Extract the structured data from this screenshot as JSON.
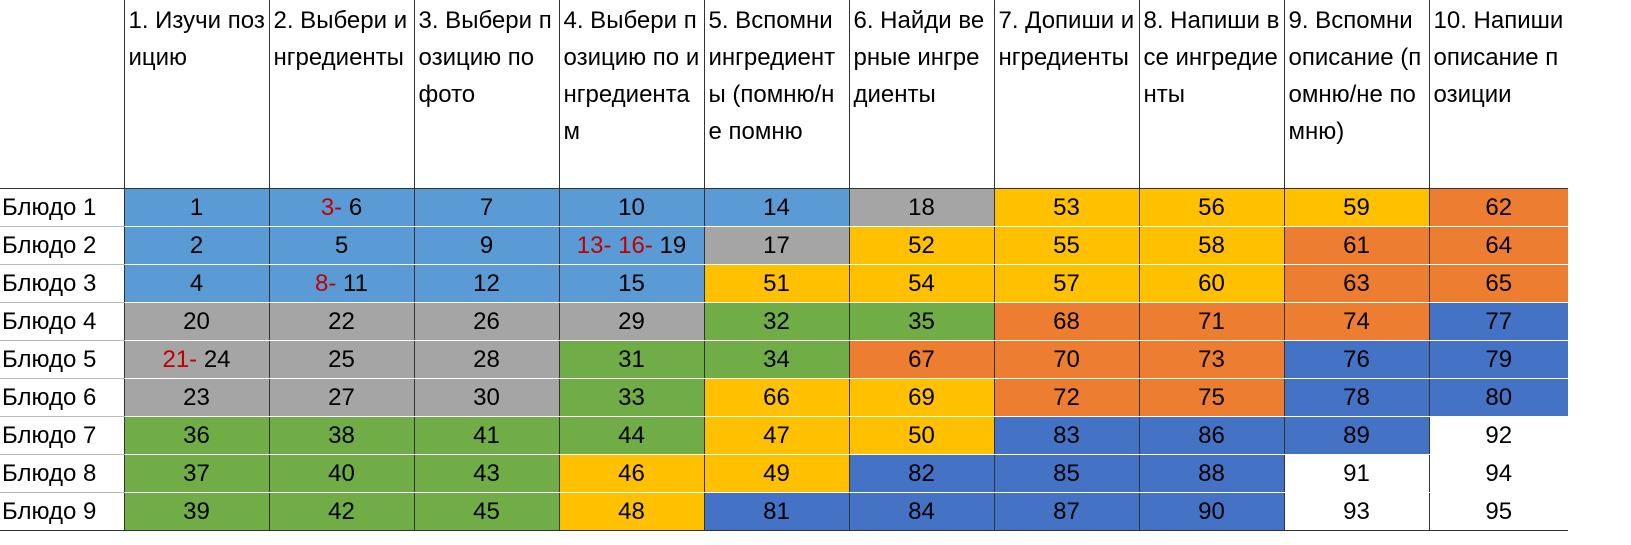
{
  "colors": {
    "lightblue": "#5b9bd5",
    "gray": "#a5a5a5",
    "yellow": "#ffc000",
    "orange": "#ed7d31",
    "green": "#70ad47",
    "blue": "#4472c4",
    "white": "#ffffff",
    "prefix_text": "#c00000"
  },
  "columns": [
    {
      "label": "1. Изучи позицию"
    },
    {
      "label": "2. Выбери ингредиенты"
    },
    {
      "label": "3. Выбери позицию по фото"
    },
    {
      "label": "4. Выбери позицию по ингредиентам"
    },
    {
      "label": "5. Вспомни ингредиенты (помню/не помню"
    },
    {
      "label": "6. Найди верные ингредиенты"
    },
    {
      "label": "7. Допиши ингредиенты"
    },
    {
      "label": "8. Напиши все ингредиенты"
    },
    {
      "label": "9. Вспомни описание (помню/не помню)"
    },
    {
      "label": "10. Напиши описание позиции"
    }
  ],
  "rows": [
    {
      "label": "Блюдо 1",
      "cells": [
        {
          "value": "1",
          "color": "lightblue"
        },
        {
          "prefix": "3-",
          "value": "6",
          "color": "lightblue"
        },
        {
          "value": "7",
          "color": "lightblue"
        },
        {
          "value": "10",
          "color": "lightblue"
        },
        {
          "value": "14",
          "color": "lightblue"
        },
        {
          "value": "18",
          "color": "gray"
        },
        {
          "value": "53",
          "color": "yellow"
        },
        {
          "value": "56",
          "color": "yellow"
        },
        {
          "value": "59",
          "color": "yellow"
        },
        {
          "value": "62",
          "color": "orange"
        }
      ]
    },
    {
      "label": "Блюдо 2",
      "cells": [
        {
          "value": "2",
          "color": "lightblue"
        },
        {
          "value": "5",
          "color": "lightblue"
        },
        {
          "value": "9",
          "color": "lightblue"
        },
        {
          "prefix": "13- 16-",
          "value": "19",
          "color": "lightblue"
        },
        {
          "value": "17",
          "color": "gray"
        },
        {
          "value": "52",
          "color": "yellow"
        },
        {
          "value": "55",
          "color": "yellow"
        },
        {
          "value": "58",
          "color": "yellow"
        },
        {
          "value": "61",
          "color": "orange"
        },
        {
          "value": "64",
          "color": "orange"
        }
      ]
    },
    {
      "label": "Блюдо 3",
      "cells": [
        {
          "value": "4",
          "color": "lightblue"
        },
        {
          "prefix": "8-",
          "value": "11",
          "color": "lightblue"
        },
        {
          "value": "12",
          "color": "lightblue"
        },
        {
          "value": "15",
          "color": "lightblue"
        },
        {
          "value": "51",
          "color": "yellow"
        },
        {
          "value": "54",
          "color": "yellow"
        },
        {
          "value": "57",
          "color": "yellow"
        },
        {
          "value": "60",
          "color": "yellow"
        },
        {
          "value": "63",
          "color": "orange"
        },
        {
          "value": "65",
          "color": "orange"
        }
      ]
    },
    {
      "label": "Блюдо 4",
      "cells": [
        {
          "value": "20",
          "color": "gray"
        },
        {
          "value": "22",
          "color": "gray"
        },
        {
          "value": "26",
          "color": "gray"
        },
        {
          "value": "29",
          "color": "gray"
        },
        {
          "value": "32",
          "color": "green"
        },
        {
          "value": "35",
          "color": "green"
        },
        {
          "value": "68",
          "color": "orange"
        },
        {
          "value": "71",
          "color": "orange"
        },
        {
          "value": "74",
          "color": "orange"
        },
        {
          "value": "77",
          "color": "blue"
        }
      ]
    },
    {
      "label": "Блюдо 5",
      "cells": [
        {
          "prefix": "21-",
          "value": "24",
          "color": "gray"
        },
        {
          "value": "25",
          "color": "gray"
        },
        {
          "value": "28",
          "color": "gray"
        },
        {
          "value": "31",
          "color": "green"
        },
        {
          "value": "34",
          "color": "green"
        },
        {
          "value": "67",
          "color": "orange"
        },
        {
          "value": "70",
          "color": "orange"
        },
        {
          "value": "73",
          "color": "orange"
        },
        {
          "value": "76",
          "color": "blue"
        },
        {
          "value": "79",
          "color": "blue"
        }
      ]
    },
    {
      "label": "Блюдо 6",
      "cells": [
        {
          "value": "23",
          "color": "gray"
        },
        {
          "value": "27",
          "color": "gray"
        },
        {
          "value": "30",
          "color": "gray"
        },
        {
          "value": "33",
          "color": "green"
        },
        {
          "value": "66",
          "color": "yellow"
        },
        {
          "value": "69",
          "color": "yellow"
        },
        {
          "value": "72",
          "color": "orange"
        },
        {
          "value": "75",
          "color": "orange"
        },
        {
          "value": "78",
          "color": "blue"
        },
        {
          "value": "80",
          "color": "blue"
        }
      ]
    },
    {
      "label": "Блюдо 7",
      "cells": [
        {
          "value": "36",
          "color": "green"
        },
        {
          "value": "38",
          "color": "green"
        },
        {
          "value": "41",
          "color": "green"
        },
        {
          "value": "44",
          "color": "green"
        },
        {
          "value": "47",
          "color": "yellow"
        },
        {
          "value": "50",
          "color": "yellow"
        },
        {
          "value": "83",
          "color": "blue"
        },
        {
          "value": "86",
          "color": "blue"
        },
        {
          "value": "89",
          "color": "blue"
        },
        {
          "value": "92",
          "color": "white"
        }
      ]
    },
    {
      "label": "Блюдо 8",
      "cells": [
        {
          "value": "37",
          "color": "green"
        },
        {
          "value": "40",
          "color": "green"
        },
        {
          "value": "43",
          "color": "green"
        },
        {
          "value": "46",
          "color": "yellow"
        },
        {
          "value": "49",
          "color": "yellow"
        },
        {
          "value": "82",
          "color": "blue"
        },
        {
          "value": "85",
          "color": "blue"
        },
        {
          "value": "88",
          "color": "blue"
        },
        {
          "value": "91",
          "color": "white"
        },
        {
          "value": "94",
          "color": "white"
        }
      ]
    },
    {
      "label": "Блюдо 9",
      "cells": [
        {
          "value": "39",
          "color": "green"
        },
        {
          "value": "42",
          "color": "green"
        },
        {
          "value": "45",
          "color": "green"
        },
        {
          "value": "48",
          "color": "yellow"
        },
        {
          "value": "81",
          "color": "blue"
        },
        {
          "value": "84",
          "color": "blue"
        },
        {
          "value": "87",
          "color": "blue"
        },
        {
          "value": "90",
          "color": "blue"
        },
        {
          "value": "93",
          "color": "white"
        },
        {
          "value": "95",
          "color": "white"
        }
      ]
    }
  ]
}
